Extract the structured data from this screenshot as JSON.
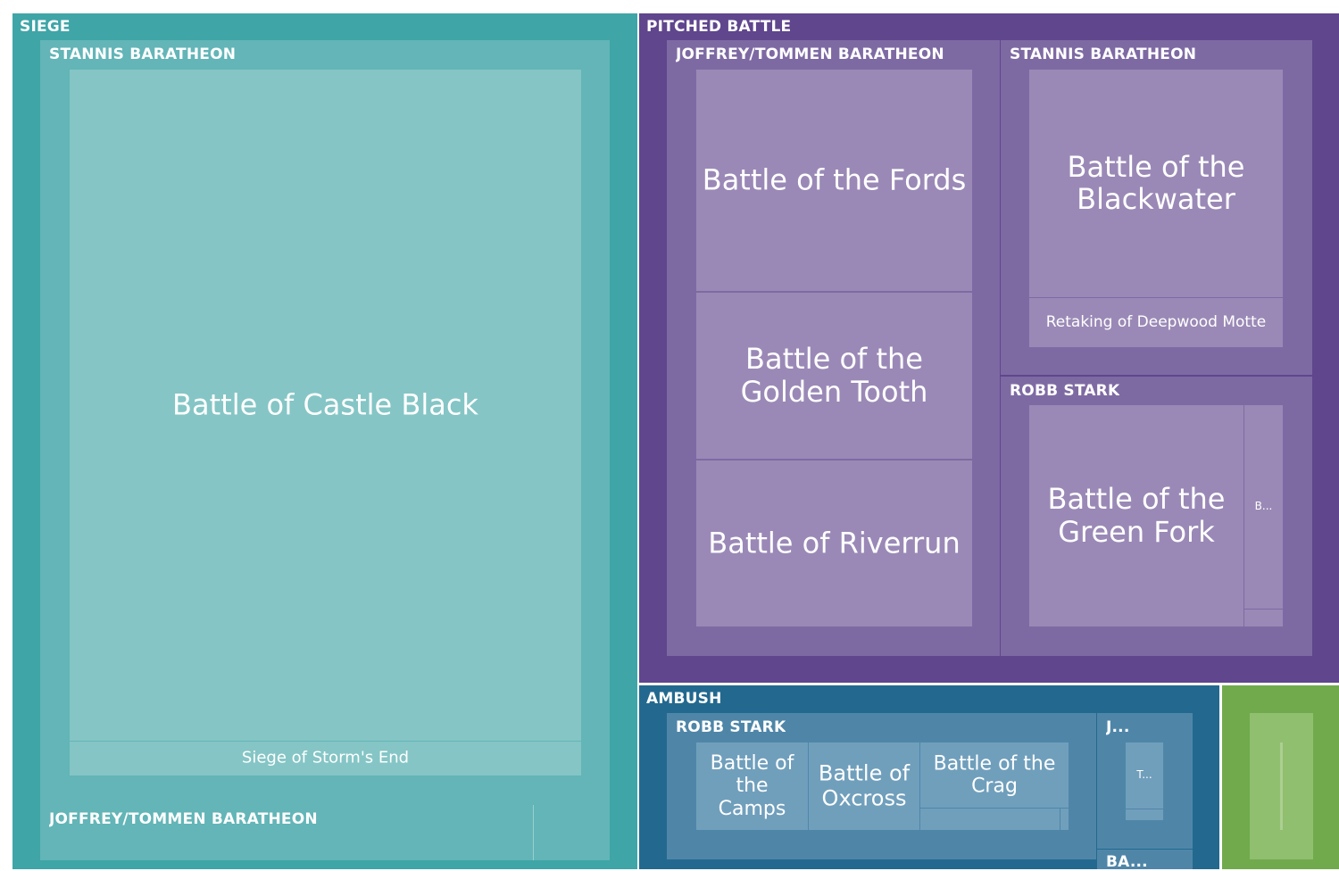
{
  "chart_data": {
    "type": "treemap",
    "title": "",
    "categories": [
      {
        "name": "SIEGE",
        "color": "#3fa5a7",
        "commanders": [
          {
            "name": "STANNIS BARATHEON",
            "battles": [
              {
                "name": "Battle of Castle Black"
              },
              {
                "name": "Siege of Storm's End"
              }
            ]
          },
          {
            "name": "JOFFREY/TOMMEN BARATHEON",
            "battles": []
          }
        ]
      },
      {
        "name": "PITCHED BATTLE",
        "color": "#5f468d",
        "commanders": [
          {
            "name": "JOFFREY/TOMMEN BARATHEON",
            "battles": [
              {
                "name": "Battle of the Fords"
              },
              {
                "name": "Battle of the Golden Tooth"
              },
              {
                "name": "Battle of Riverrun"
              }
            ]
          },
          {
            "name": "STANNIS BARATHEON",
            "battles": [
              {
                "name": "Battle of the Blackwater"
              },
              {
                "name": "Retaking of Deepwood Motte"
              }
            ]
          },
          {
            "name": "ROBB STARK",
            "battles": [
              {
                "name": "Battle of the Green Fork"
              },
              {
                "name": "B..."
              }
            ]
          }
        ]
      },
      {
        "name": "AMBUSH",
        "color": "#23698f",
        "commanders": [
          {
            "name": "ROBB STARK",
            "battles": [
              {
                "name": "Battle of the Camps"
              },
              {
                "name": "Battle of Oxcross"
              },
              {
                "name": "Battle of the Crag"
              }
            ]
          },
          {
            "name": "J...",
            "battles": [
              {
                "name": "T..."
              }
            ]
          },
          {
            "name": "BA...",
            "battles": []
          }
        ]
      },
      {
        "name": "",
        "color": "#71aa4d",
        "commanders": []
      }
    ]
  }
}
